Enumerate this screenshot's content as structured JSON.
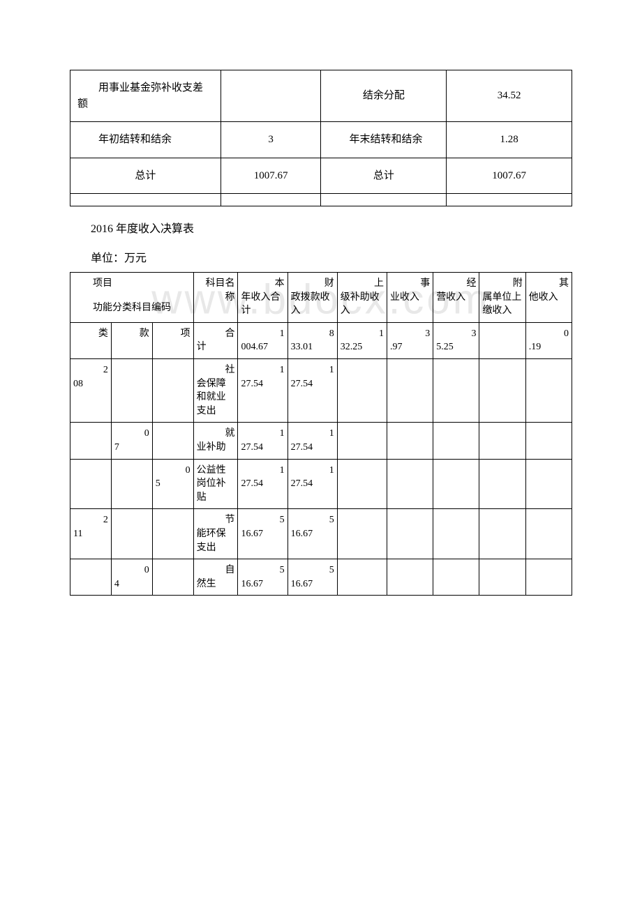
{
  "table1": {
    "rows": [
      {
        "label1": "用事业基金弥补收支差额",
        "val1": "",
        "label2": "结余分配",
        "val2": "34.52"
      },
      {
        "label1": "年初结转和结余",
        "val1": "3",
        "label2": "年末结转和结余",
        "val2": "1.28"
      },
      {
        "label1": "总计",
        "val1": "1007.67",
        "label2": "总计",
        "val2": "1007.67"
      }
    ]
  },
  "section_title1": "2016 年度收入决算表",
  "section_title2": "单位：万元",
  "table2": {
    "header": {
      "proj": "项目",
      "code_label": "功能分类科目编码",
      "subject_name": "科目名称",
      "col_total_pre": "本",
      "col_total": "年收入合计",
      "col_fiscal_pre": "财",
      "col_fiscal": "政拨款收入",
      "col_upper_pre": "上",
      "col_upper": "级补助收入",
      "col_biz_pre": "事",
      "col_biz": "业收入",
      "col_oper_pre": "经",
      "col_oper": "营收入",
      "col_affil_pre": "附",
      "col_affil": "属单位上缴收入",
      "col_other_pre": "其",
      "col_other": "他收入"
    },
    "rows": [
      {
        "c1_pre": "类",
        "c1": "",
        "c2_pre": "款",
        "c2": "",
        "c3_pre": "项",
        "c3": "",
        "name_pre": "合",
        "name": "计",
        "v1_pre": "1",
        "v1": "004.67",
        "v2_pre": "8",
        "v2": "33.01",
        "v3_pre": "1",
        "v3": "32.25",
        "v4_pre": "3",
        "v4": ".97",
        "v5_pre": "3",
        "v5": "5.25",
        "v6_pre": "",
        "v6": "",
        "v7_pre": "0",
        "v7": ".19"
      },
      {
        "c1_pre": "2",
        "c1": "08",
        "c2_pre": "",
        "c2": "",
        "c3_pre": "",
        "c3": "",
        "name_pre": "社",
        "name": "会保障和就业支出",
        "v1_pre": "1",
        "v1": "27.54",
        "v2_pre": "1",
        "v2": "27.54",
        "v3_pre": "",
        "v3": "",
        "v4_pre": "",
        "v4": "",
        "v5_pre": "",
        "v5": "",
        "v6_pre": "",
        "v6": "",
        "v7_pre": "",
        "v7": ""
      },
      {
        "c1_pre": "",
        "c1": "",
        "c2_pre": "0",
        "c2": "7",
        "c3_pre": "",
        "c3": "",
        "name_pre": "就",
        "name": "业补助",
        "v1_pre": "1",
        "v1": "27.54",
        "v2_pre": "1",
        "v2": "27.54",
        "v3_pre": "",
        "v3": "",
        "v4_pre": "",
        "v4": "",
        "v5_pre": "",
        "v5": "",
        "v6_pre": "",
        "v6": "",
        "v7_pre": "",
        "v7": ""
      },
      {
        "c1_pre": "",
        "c1": "",
        "c2_pre": "",
        "c2": "",
        "c3_pre": "0",
        "c3": "5",
        "name_pre": "",
        "name": "公益性岗位补贴",
        "v1_pre": "1",
        "v1": "27.54",
        "v2_pre": "1",
        "v2": "27.54",
        "v3_pre": "",
        "v3": "",
        "v4_pre": "",
        "v4": "",
        "v5_pre": "",
        "v5": "",
        "v6_pre": "",
        "v6": "",
        "v7_pre": "",
        "v7": ""
      },
      {
        "c1_pre": "2",
        "c1": "11",
        "c2_pre": "",
        "c2": "",
        "c3_pre": "",
        "c3": "",
        "name_pre": "节",
        "name": "能环保支出",
        "v1_pre": "5",
        "v1": "16.67",
        "v2_pre": "5",
        "v2": "16.67",
        "v3_pre": "",
        "v3": "",
        "v4_pre": "",
        "v4": "",
        "v5_pre": "",
        "v5": "",
        "v6_pre": "",
        "v6": "",
        "v7_pre": "",
        "v7": ""
      },
      {
        "c1_pre": "",
        "c1": "",
        "c2_pre": "0",
        "c2": "4",
        "c3_pre": "",
        "c3": "",
        "name_pre": "自",
        "name": "然生",
        "v1_pre": "5",
        "v1": "16.67",
        "v2_pre": "5",
        "v2": "16.67",
        "v3_pre": "",
        "v3": "",
        "v4_pre": "",
        "v4": "",
        "v5_pre": "",
        "v5": "",
        "v6_pre": "",
        "v6": "",
        "v7_pre": "",
        "v7": ""
      }
    ]
  }
}
